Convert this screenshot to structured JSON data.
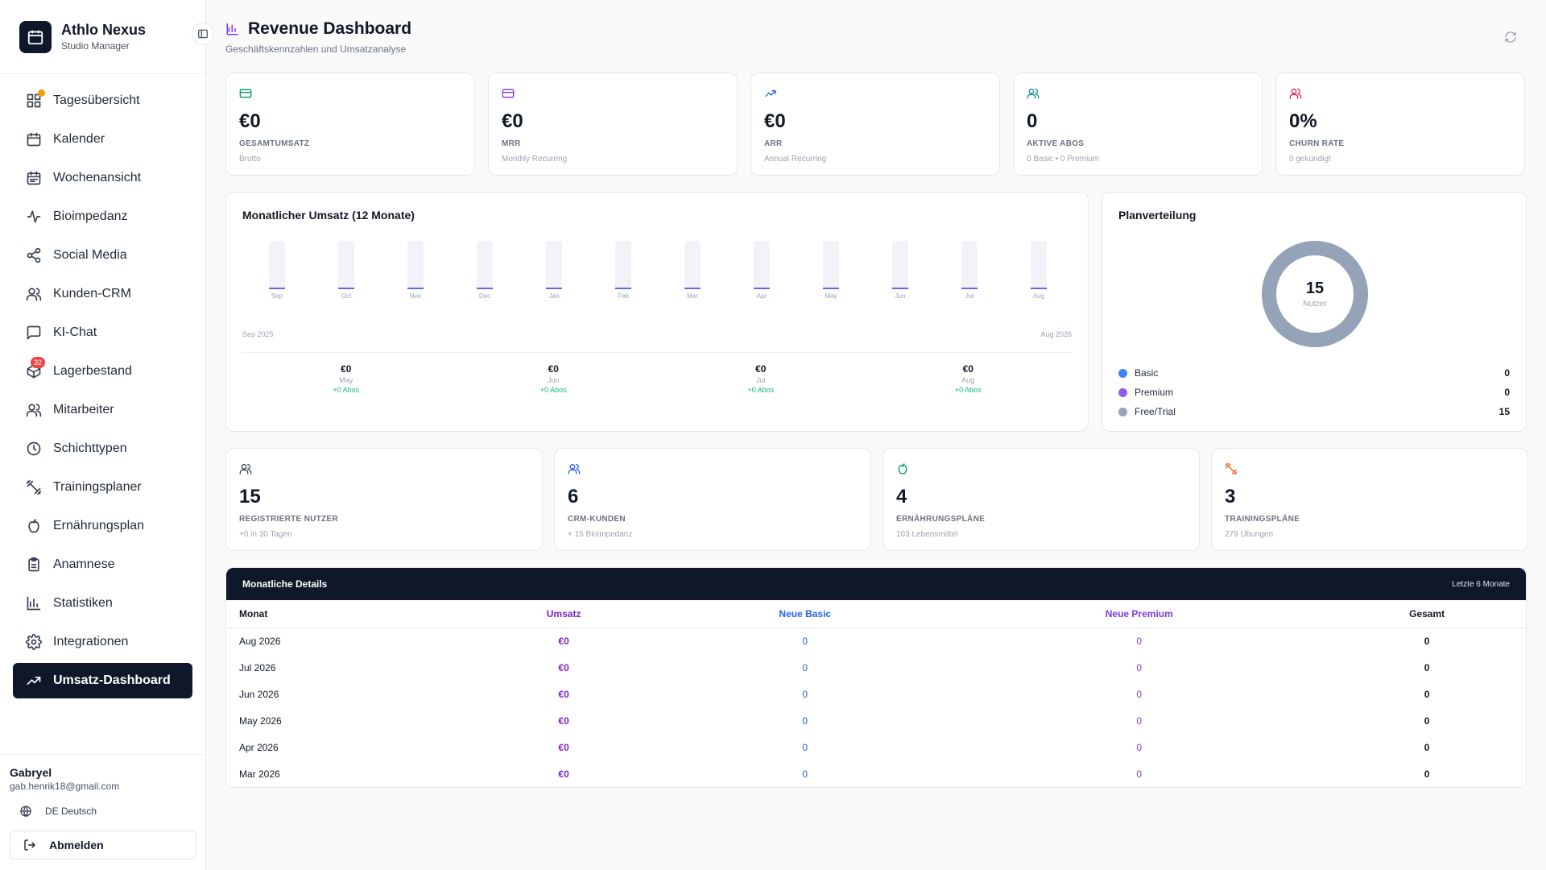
{
  "brand": {
    "title": "Athlo Nexus",
    "subtitle": "Studio Manager"
  },
  "nav": [
    {
      "label": "Tagesübersicht",
      "icon": "grid-icon",
      "dot": true
    },
    {
      "label": "Kalender",
      "icon": "calendar-icon"
    },
    {
      "label": "Wochenansicht",
      "icon": "calendar-week-icon"
    },
    {
      "label": "Bioimpedanz",
      "icon": "activity-icon"
    },
    {
      "label": "Social Media",
      "icon": "share-icon"
    },
    {
      "label": "Kunden-CRM",
      "icon": "users-icon"
    },
    {
      "label": "KI-Chat",
      "icon": "chat-icon"
    },
    {
      "label": "Lagerbestand",
      "icon": "package-icon",
      "badge": "32"
    },
    {
      "label": "Mitarbeiter",
      "icon": "users-icon"
    },
    {
      "label": "Schichttypen",
      "icon": "clock-icon"
    },
    {
      "label": "Trainingsplaner",
      "icon": "dumbbell-icon"
    },
    {
      "label": "Ernährungsplan",
      "icon": "apple-icon"
    },
    {
      "label": "Anamnese",
      "icon": "clipboard-icon"
    },
    {
      "label": "Statistiken",
      "icon": "bar-chart-icon"
    },
    {
      "label": "Integrationen",
      "icon": "gear-icon"
    },
    {
      "label": "Umsatz-Dashboard",
      "icon": "trending-up-icon",
      "active": true
    }
  ],
  "user": {
    "name": "Gabryel",
    "email": "gab.henrik18@gmail.com",
    "language": "DE Deutsch",
    "logout": "Abmelden"
  },
  "header": {
    "title": "Revenue Dashboard",
    "subtitle": "Geschäftskennzahlen und Umsatzanalyse"
  },
  "kpis": [
    {
      "value": "€0",
      "label": "GESAMTUMSATZ",
      "sub": "Brutto",
      "icon": "credit-card-icon",
      "color": "#059669"
    },
    {
      "value": "€0",
      "label": "MRR",
      "sub": "Monthly Recurring",
      "icon": "credit-card-icon",
      "color": "#7c3aed"
    },
    {
      "value": "€0",
      "label": "ARR",
      "sub": "Annual Recurring",
      "icon": "trending-up-icon",
      "color": "#2563eb"
    },
    {
      "value": "0",
      "label": "AKTIVE ABOS",
      "sub": "0 Basic • 0 Premium",
      "icon": "users-icon",
      "color": "#0d9488"
    },
    {
      "value": "0%",
      "label": "CHURN RATE",
      "sub": "0 gekündigt",
      "icon": "users-icon",
      "color": "#e11d48"
    }
  ],
  "monthly_chart": {
    "title": "Monatlicher Umsatz (12 Monate)",
    "range_start": "Sep 2025",
    "range_end": "Aug 2026",
    "summary": [
      {
        "value": "€0",
        "month": "May",
        "abos": "+0 Abos"
      },
      {
        "value": "€0",
        "month": "Jun",
        "abos": "+0 Abos"
      },
      {
        "value": "€0",
        "month": "Jul",
        "abos": "+0 Abos"
      },
      {
        "value": "€0",
        "month": "Aug",
        "abos": "+0 Abos"
      }
    ]
  },
  "chart_data": {
    "type": "bar",
    "categories": [
      "Sep",
      "Oct",
      "Nov",
      "Dec",
      "Jan",
      "Feb",
      "Mar",
      "Apr",
      "May",
      "Jun",
      "Jul",
      "Aug"
    ],
    "values": [
      0,
      0,
      0,
      0,
      0,
      0,
      0,
      0,
      0,
      0,
      0,
      0
    ],
    "title": "Monatlicher Umsatz (12 Monate)",
    "xlabel": "",
    "ylabel": "",
    "grid": false
  },
  "plan": {
    "title": "Planverteilung",
    "total": "15",
    "total_label": "Nutzer",
    "items": [
      {
        "name": "Basic",
        "value": "0",
        "color": "#3b82f6"
      },
      {
        "name": "Premium",
        "value": "0",
        "color": "#8b5cf6"
      },
      {
        "name": "Free/Trial",
        "value": "15",
        "color": "#94a3b8"
      }
    ]
  },
  "stats": [
    {
      "value": "15",
      "label": "REGISTRIERTE NUTZER",
      "sub": "+0 in 30 Tagen",
      "icon": "users-icon",
      "color": "#374151"
    },
    {
      "value": "6",
      "label": "CRM-KUNDEN",
      "sub": "+ 15 Bioimpedanz",
      "icon": "users-icon",
      "color": "#2563eb"
    },
    {
      "value": "4",
      "label": "ERNÄHRUNGSPLÄNE",
      "sub": "103 Lebensmittel",
      "icon": "apple-icon",
      "color": "#059669"
    },
    {
      "value": "3",
      "label": "TRAININGSPLÄNE",
      "sub": "279 Übungen",
      "icon": "dumbbell-icon",
      "color": "#ea580c"
    }
  ],
  "table": {
    "title": "Monatliche Details",
    "range": "Letzte 6 Monate",
    "columns": [
      "Monat",
      "Umsatz",
      "Neue Basic",
      "Neue Premium",
      "Gesamt"
    ],
    "header_colors": [
      "#111827",
      "#7e22ce",
      "#2563eb",
      "#7c3aed",
      "#111827"
    ],
    "rows": [
      [
        "Aug 2026",
        "€0",
        "0",
        "0",
        "0"
      ],
      [
        "Jul 2026",
        "€0",
        "0",
        "0",
        "0"
      ],
      [
        "Jun 2026",
        "€0",
        "0",
        "0",
        "0"
      ],
      [
        "May 2026",
        "€0",
        "0",
        "0",
        "0"
      ],
      [
        "Apr 2026",
        "€0",
        "0",
        "0",
        "0"
      ],
      [
        "Mar 2026",
        "€0",
        "0",
        "0",
        "0"
      ]
    ]
  }
}
